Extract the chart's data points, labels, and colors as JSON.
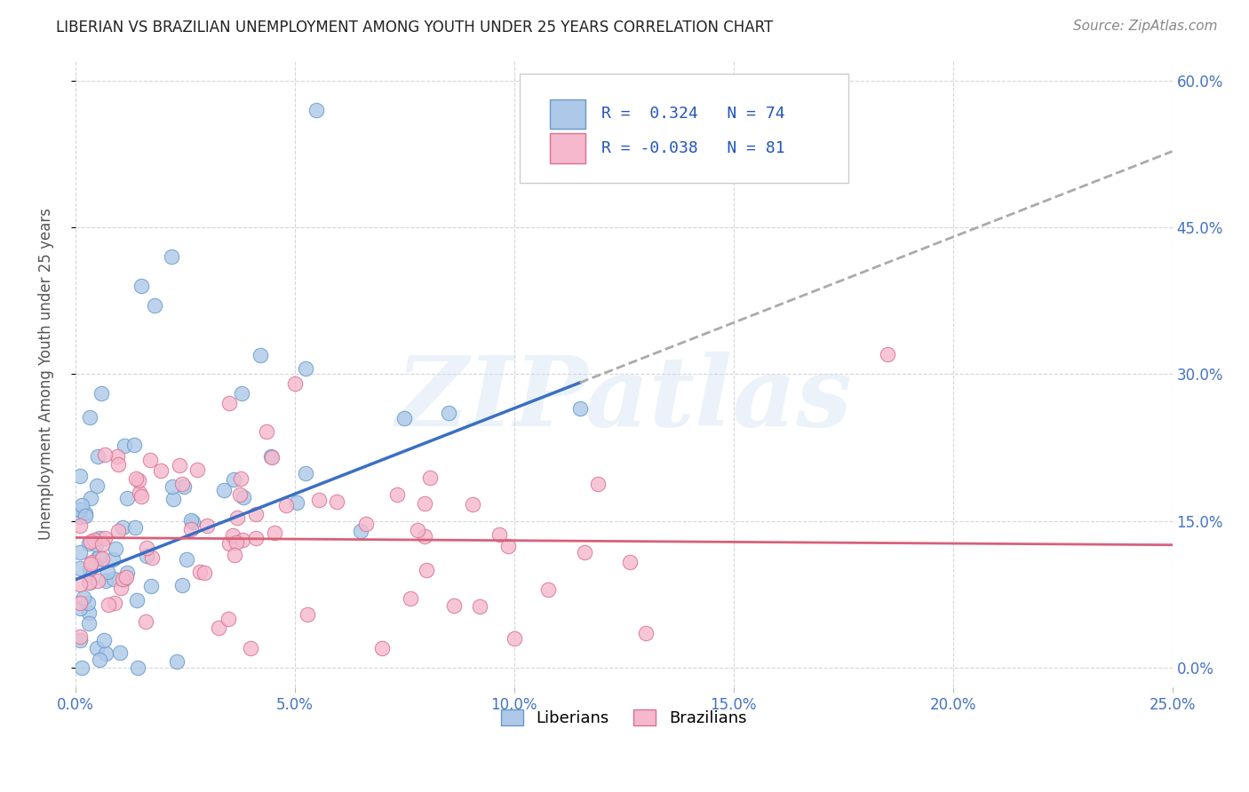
{
  "title": "LIBERIAN VS BRAZILIAN UNEMPLOYMENT AMONG YOUTH UNDER 25 YEARS CORRELATION CHART",
  "source": "Source: ZipAtlas.com",
  "ylabel_label": "Unemployment Among Youth under 25 years",
  "legend_liberian": "Liberians",
  "legend_brazilian": "Brazilians",
  "R_liberian": 0.324,
  "N_liberian": 74,
  "R_brazilian": -0.038,
  "N_brazilian": 81,
  "color_liberian_fill": "#adc8e8",
  "color_liberian_edge": "#6699cc",
  "color_liberian_line": "#3a6fc4",
  "color_brazilian_fill": "#f5b8cc",
  "color_brazilian_edge": "#d97090",
  "color_brazilian_line": "#d9607a",
  "color_dashed_line": "#aaaaaa",
  "watermark": "ZIPatlas",
  "xlim": [
    0.0,
    0.25
  ],
  "ylim": [
    -0.02,
    0.62
  ],
  "ytick_vals": [
    0.0,
    0.15,
    0.3,
    0.45,
    0.6
  ],
  "ytick_labels": [
    "0.0%",
    "15.0%",
    "30.0%",
    "45.0%",
    "60.0%"
  ],
  "xtick_vals": [
    0.0,
    0.05,
    0.1,
    0.15,
    0.2,
    0.25
  ],
  "xtick_labels": [
    "0.0%",
    "5.0%",
    "10.0%",
    "15.0%",
    "20.0%",
    "25.0%"
  ]
}
